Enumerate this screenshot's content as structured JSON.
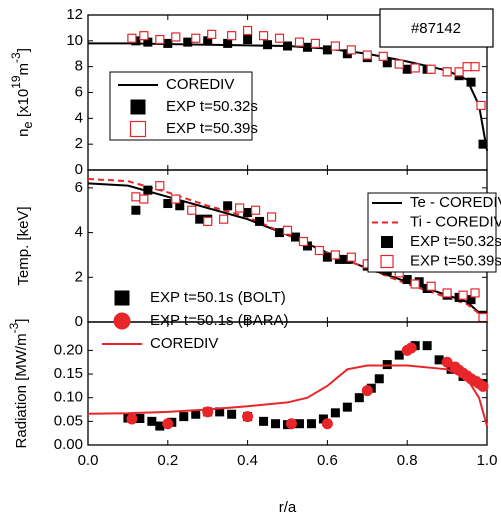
{
  "chart_data": [
    {
      "type": "line",
      "annotation": "#87142",
      "ylabel": [
        "n",
        "e",
        " [x10",
        "19",
        "m",
        "-3",
        "]"
      ],
      "xlim": [
        0,
        1
      ],
      "ylim": [
        0,
        12
      ],
      "yticks": [
        0,
        2,
        4,
        6,
        8,
        10,
        12
      ],
      "series": [
        {
          "name": "COREDIV",
          "color": "#000000",
          "line": "solid",
          "x": [
            0,
            0.1,
            0.2,
            0.3,
            0.4,
            0.5,
            0.6,
            0.7,
            0.8,
            0.9,
            0.95,
            0.98,
            1.0
          ],
          "values": [
            9.8,
            9.8,
            9.75,
            9.7,
            9.65,
            9.6,
            9.4,
            9.0,
            8.4,
            7.7,
            7.0,
            5.0,
            1.5
          ]
        },
        {
          "name": "EXP t=50.32s",
          "color": "#000000",
          "marker": "square",
          "filled": true,
          "x": [
            0.12,
            0.15,
            0.2,
            0.25,
            0.3,
            0.35,
            0.4,
            0.45,
            0.5,
            0.55,
            0.6,
            0.65,
            0.7,
            0.75,
            0.8,
            0.85,
            0.9,
            0.93,
            0.96,
            0.99
          ],
          "values": [
            10.0,
            9.9,
            9.8,
            9.9,
            10.0,
            9.8,
            10.1,
            9.7,
            9.6,
            9.5,
            9.3,
            9.0,
            8.7,
            8.3,
            7.8,
            7.8,
            7.6,
            7.3,
            6.8,
            2.0
          ]
        },
        {
          "name": "EXP t=50.39s",
          "color": "#e8262a",
          "marker": "square",
          "filled": false,
          "x": [
            0.11,
            0.14,
            0.18,
            0.22,
            0.27,
            0.31,
            0.36,
            0.4,
            0.44,
            0.48,
            0.53,
            0.57,
            0.62,
            0.66,
            0.7,
            0.74,
            0.78,
            0.82,
            0.86,
            0.9,
            0.93,
            0.95,
            0.97,
            0.985
          ],
          "values": [
            10.2,
            10.4,
            10.1,
            10.3,
            10.2,
            10.5,
            10.4,
            10.8,
            10.4,
            10.2,
            9.9,
            9.8,
            9.6,
            9.3,
            8.9,
            8.8,
            8.2,
            7.9,
            7.8,
            7.6,
            7.6,
            8.0,
            8.0,
            5.0
          ]
        }
      ]
    },
    {
      "type": "line",
      "ylabel": [
        "Temp. [keV]"
      ],
      "xlim": [
        0,
        1
      ],
      "ylim": [
        0,
        6.8
      ],
      "yticks": [
        0,
        2,
        4,
        6
      ],
      "series": [
        {
          "name": "Te - COREDIV",
          "color": "#000000",
          "line": "solid",
          "x": [
            0,
            0.1,
            0.2,
            0.3,
            0.4,
            0.5,
            0.6,
            0.7,
            0.8,
            0.9,
            0.95,
            1.0
          ],
          "values": [
            6.2,
            6.1,
            5.6,
            5.1,
            4.6,
            3.9,
            3.1,
            2.4,
            1.8,
            1.2,
            0.9,
            0.1
          ]
        },
        {
          "name": "Ti - COREDIV",
          "color": "#e8262a",
          "line": "dashed",
          "x": [
            0,
            0.1,
            0.2,
            0.3,
            0.4,
            0.5,
            0.6,
            0.7,
            0.8,
            0.9,
            0.95,
            1.0
          ],
          "values": [
            6.4,
            6.3,
            5.8,
            5.2,
            4.7,
            3.9,
            3.1,
            2.4,
            1.7,
            1.1,
            0.8,
            0.1
          ]
        },
        {
          "name": "EXP t=50.32s",
          "color": "#000000",
          "marker": "square",
          "filled": true,
          "x": [
            0.12,
            0.15,
            0.2,
            0.23,
            0.28,
            0.3,
            0.35,
            0.4,
            0.43,
            0.48,
            0.52,
            0.55,
            0.6,
            0.63,
            0.65,
            0.7,
            0.75,
            0.8,
            0.83,
            0.85,
            0.9,
            0.93,
            0.96,
            0.99
          ],
          "values": [
            5.0,
            5.9,
            5.3,
            5.2,
            4.6,
            4.6,
            5.2,
            4.9,
            4.5,
            4.0,
            3.8,
            3.4,
            2.9,
            2.8,
            2.8,
            2.5,
            2.3,
            1.9,
            1.8,
            1.5,
            1.2,
            1.1,
            1.0,
            0.3
          ]
        },
        {
          "name": "EXP t=50.39s",
          "color": "#e8262a",
          "marker": "square",
          "filled": false,
          "x": [
            0.12,
            0.14,
            0.18,
            0.22,
            0.26,
            0.3,
            0.34,
            0.38,
            0.42,
            0.46,
            0.5,
            0.54,
            0.58,
            0.62,
            0.66,
            0.7,
            0.74,
            0.78,
            0.82,
            0.86,
            0.9,
            0.94,
            0.97,
            0.99
          ],
          "values": [
            5.6,
            5.5,
            6.1,
            5.5,
            5.0,
            4.5,
            4.6,
            5.1,
            5.0,
            4.7,
            4.1,
            3.6,
            3.2,
            3.0,
            2.9,
            2.6,
            2.5,
            2.2,
            1.7,
            1.6,
            1.3,
            1.2,
            1.3,
            0.2
          ]
        }
      ]
    },
    {
      "type": "line",
      "ylabel": [
        "Radiation [MW/m",
        "-3",
        "]"
      ],
      "xlabel": "r/a",
      "xlim": [
        0,
        1
      ],
      "ylim": [
        0,
        0.26
      ],
      "xticks": [
        {
          "value": 0,
          "label": "0.0"
        },
        {
          "value": 0.2,
          "label": "0.2"
        },
        {
          "value": 0.4,
          "label": "0.4"
        },
        {
          "value": 0.6,
          "label": "0.6"
        },
        {
          "value": 0.8,
          "label": "0.8"
        },
        {
          "value": 1,
          "label": "1.0"
        }
      ],
      "yticks": [
        {
          "value": 0,
          "label": "0.00"
        },
        {
          "value": 0.05,
          "label": "0.05"
        },
        {
          "value": 0.1,
          "label": "0.10"
        },
        {
          "value": 0.15,
          "label": "0.15"
        },
        {
          "value": 0.2,
          "label": "0.20"
        }
      ],
      "series": [
        {
          "name": "EXP t=50.1s (BOLT)",
          "color": "#000000",
          "marker": "square",
          "filled": true,
          "x": [
            0.1,
            0.13,
            0.16,
            0.18,
            0.21,
            0.24,
            0.27,
            0.3,
            0.33,
            0.36,
            0.4,
            0.44,
            0.47,
            0.5,
            0.53,
            0.56,
            0.59,
            0.62,
            0.65,
            0.68,
            0.71,
            0.73,
            0.75,
            0.78,
            0.82,
            0.85,
            0.88,
            0.91,
            0.94,
            0.97,
            0.99
          ],
          "values": [
            0.057,
            0.056,
            0.05,
            0.04,
            0.048,
            0.06,
            0.065,
            0.07,
            0.07,
            0.065,
            0.06,
            0.05,
            0.045,
            0.043,
            0.045,
            0.045,
            0.055,
            0.068,
            0.08,
            0.1,
            0.12,
            0.14,
            0.17,
            0.19,
            0.21,
            0.21,
            0.18,
            0.16,
            0.145,
            0.135,
            0.13
          ]
        },
        {
          "name": "EXP t=50.1s (BARA)",
          "color": "#e8262a",
          "marker": "circle",
          "filled": true,
          "x": [
            0.11,
            0.2,
            0.3,
            0.4,
            0.51,
            0.6,
            0.7,
            0.8,
            0.81,
            0.9,
            0.92,
            0.93,
            0.94,
            0.95,
            0.96,
            0.97,
            0.98,
            0.99
          ],
          "values": [
            0.055,
            0.045,
            0.07,
            0.06,
            0.045,
            0.045,
            0.115,
            0.2,
            0.205,
            0.175,
            0.165,
            0.158,
            0.152,
            0.146,
            0.14,
            0.135,
            0.13,
            0.124
          ]
        },
        {
          "name": "COREDIV",
          "color": "#e8262a",
          "line": "solid",
          "x": [
            0,
            0.1,
            0.2,
            0.3,
            0.4,
            0.5,
            0.55,
            0.6,
            0.65,
            0.7,
            0.8,
            0.9,
            0.95,
            0.98,
            1.0
          ],
          "values": [
            0.066,
            0.067,
            0.07,
            0.075,
            0.082,
            0.09,
            0.1,
            0.125,
            0.16,
            0.168,
            0.168,
            0.16,
            0.14,
            0.1,
            0.04
          ]
        }
      ]
    }
  ]
}
